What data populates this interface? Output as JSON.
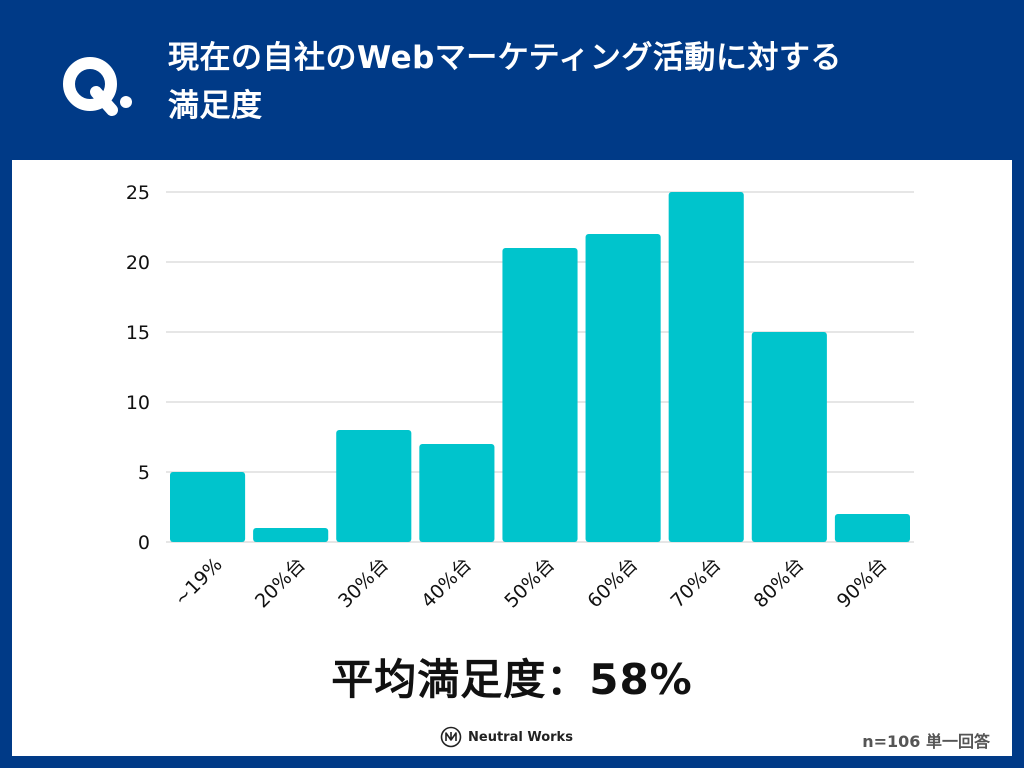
{
  "header": {
    "q_label": "Q.",
    "title_line1": "現在の自社のWebマーケティング活動に対する",
    "title_line2": "満足度"
  },
  "colors": {
    "background": "#003a87",
    "panel": "#ffffff",
    "bar": "#00c4cc",
    "grid": "#cccccc",
    "text": "#111111"
  },
  "chart_data": {
    "type": "bar",
    "title": "",
    "xlabel": "",
    "ylabel": "",
    "categories": [
      "~19%",
      "20%台",
      "30%台",
      "40%台",
      "50%台",
      "60%台",
      "70%台",
      "80%台",
      "90%台"
    ],
    "values": [
      5,
      1,
      8,
      7,
      21,
      22,
      25,
      15,
      2
    ],
    "ylim": [
      0,
      25
    ],
    "yticks": [
      0,
      5,
      10,
      15,
      20,
      25
    ],
    "grid": true,
    "legend": "none"
  },
  "summary": {
    "average_text": "平均満足度：58%"
  },
  "footer": {
    "brand": "Neutral Works",
    "note": "n=106 単一回答"
  }
}
